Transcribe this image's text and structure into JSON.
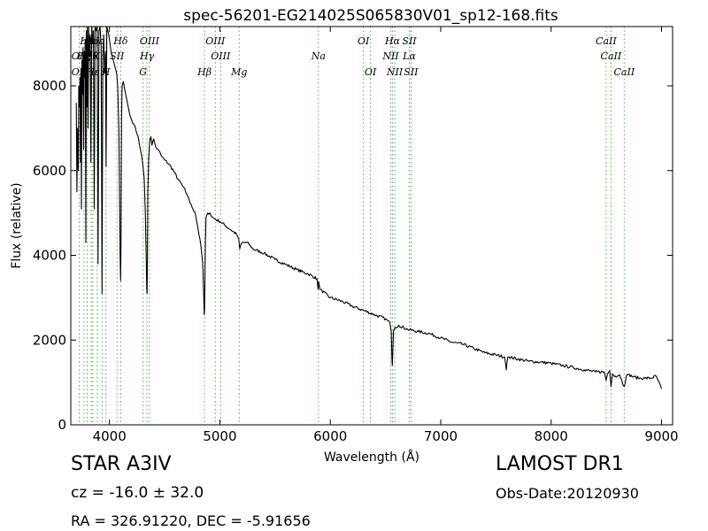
{
  "chart_data": {
    "type": "line",
    "title": "spec-56201-EG214025S065830V01_sp12-168.fits",
    "xlabel": "Wavelength (Å)",
    "ylabel": "Flux (relative)",
    "xlim": [
      3650,
      9100
    ],
    "ylim": [
      0,
      9400
    ],
    "xticks": [
      4000,
      5000,
      6000,
      7000,
      8000,
      9000
    ],
    "yticks": [
      0,
      2000,
      4000,
      6000,
      8000
    ],
    "grid": false,
    "series": [
      {
        "color": "#000000",
        "x": [
          3700,
          3705,
          3712,
          3718,
          3722,
          3728,
          3733,
          3737,
          3742,
          3746,
          3751,
          3756,
          3761,
          3766,
          3771,
          3775,
          3781,
          3786,
          3791,
          3796,
          3800,
          3806,
          3812,
          3818,
          3825,
          3832,
          3840,
          3848,
          3855,
          3862,
          3870,
          3880,
          3889,
          3897,
          3905,
          3915,
          3925,
          3933,
          3940,
          3948,
          3956,
          3964,
          3970,
          3976,
          3985,
          3995,
          4005,
          4015,
          4025,
          4035,
          4045,
          4055,
          4065,
          4075,
          4085,
          4093,
          4097,
          4101,
          4105,
          4109,
          4115,
          4125,
          4140,
          4155,
          4170,
          4185,
          4200,
          4220,
          4240,
          4260,
          4280,
          4300,
          4315,
          4325,
          4333,
          4338,
          4341,
          4344,
          4348,
          4355,
          4365,
          4375,
          4385,
          4400,
          4420,
          4440,
          4470,
          4500,
          4540,
          4580,
          4620,
          4660,
          4700,
          4740,
          4780,
          4810,
          4830,
          4845,
          4855,
          4858,
          4861,
          4864,
          4868,
          4875,
          4890,
          4910,
          4930,
          4960,
          5000,
          5050,
          5100,
          5150,
          5170,
          5180,
          5200,
          5250,
          5300,
          5400,
          5500,
          5600,
          5700,
          5800,
          5880,
          5889,
          5895,
          5905,
          6000,
          6100,
          6200,
          6300,
          6400,
          6500,
          6540,
          6552,
          6558,
          6562,
          6566,
          6572,
          6585,
          6620,
          6700,
          6800,
          6900,
          7000,
          7100,
          7200,
          7300,
          7400,
          7500,
          7580,
          7594,
          7600,
          7608,
          7620,
          7700,
          7800,
          7900,
          8000,
          8100,
          8200,
          8300,
          8400,
          8480,
          8498,
          8510,
          8530,
          8542,
          8555,
          8580,
          8620,
          8662,
          8680,
          8700,
          8750,
          8800,
          8850,
          8900,
          8950,
          9000
        ],
        "y": [
          7600,
          5500,
          7000,
          6000,
          8000,
          7500,
          8200,
          6200,
          8400,
          5100,
          8600,
          7800,
          8900,
          6500,
          8800,
          8200,
          9100,
          4300,
          9300,
          7500,
          9400,
          7000,
          9400,
          8700,
          9200,
          6200,
          9400,
          9000,
          9300,
          5100,
          9400,
          9300,
          9400,
          3800,
          9300,
          9400,
          8900,
          3100,
          8700,
          9200,
          8300,
          8800,
          6100,
          9400,
          9300,
          9200,
          9000,
          8800,
          8700,
          8600,
          8500,
          8400,
          8300,
          8000,
          7000,
          5000,
          3900,
          3400,
          4500,
          7200,
          8000,
          8100,
          7900,
          7700,
          7500,
          7300,
          7200,
          7100,
          6950,
          6800,
          6500,
          6200,
          5800,
          5000,
          4000,
          3200,
          3100,
          3900,
          5500,
          6300,
          6700,
          6800,
          6600,
          6750,
          6550,
          6500,
          6350,
          6250,
          6150,
          6000,
          5800,
          5650,
          5450,
          5200,
          4950,
          4500,
          4200,
          3800,
          3000,
          2600,
          2700,
          3300,
          4200,
          4900,
          5000,
          5000,
          4900,
          4850,
          4800,
          4700,
          4600,
          4500,
          4400,
          4150,
          4300,
          4300,
          4150,
          4050,
          3900,
          3780,
          3660,
          3560,
          3450,
          3200,
          3380,
          3200,
          3000,
          2920,
          2800,
          2700,
          2600,
          2500,
          2400,
          2200,
          1600,
          1400,
          1700,
          2200,
          2300,
          2350,
          2250,
          2200,
          2150,
          2050,
          1950,
          1900,
          1800,
          1700,
          1650,
          1600,
          1300,
          1450,
          1600,
          1600,
          1550,
          1500,
          1480,
          1450,
          1400,
          1350,
          1300,
          1250,
          1250,
          1050,
          1200,
          1280,
          900,
          1200,
          1150,
          1180,
          900,
          1150,
          1180,
          1130,
          1100,
          1100,
          1100,
          1150,
          850
        ]
      }
    ],
    "line_labels": [
      {
        "text": "Hθ",
        "wavelength": 3798,
        "row": 0,
        "lines": [
          3798
        ]
      },
      {
        "text": "Hη",
        "wavelength": 3836,
        "row": 0,
        "lines": [
          3836
        ]
      },
      {
        "text": "Hε",
        "wavelength": 3889,
        "row": 0,
        "lines": [
          3889
        ]
      },
      {
        "text": "Hδ",
        "wavelength": 4102,
        "row": 0,
        "lines": [
          4102
        ]
      },
      {
        "text": "OIII",
        "wavelength": 4363,
        "row": 0,
        "lines": [
          4363
        ]
      },
      {
        "text": "OIII",
        "wavelength": 4959,
        "row": 0,
        "lines": [
          4959
        ]
      },
      {
        "text": "OI",
        "wavelength": 6300,
        "row": 0,
        "lines": [
          6300
        ]
      },
      {
        "text": "Hα",
        "wavelength": 6563,
        "row": 0,
        "lines": [
          6563
        ]
      },
      {
        "text": "SII",
        "wavelength": 6716,
        "row": 0,
        "lines": [
          6716
        ]
      },
      {
        "text": "CaII",
        "wavelength": 8498,
        "row": 0,
        "lines": [
          8498
        ]
      },
      {
        "text": "OII",
        "wavelength": 3727,
        "row": 1,
        "lines": [
          3727
        ]
      },
      {
        "text": "Hζ",
        "wavelength": 3770,
        "row": 1,
        "lines": [
          3770
        ]
      },
      {
        "text": "Hθ",
        "wavelength": 3835,
        "row": 1,
        "lines": [
          3835
        ]
      },
      {
        "text": "K",
        "wavelength": 3880,
        "row": 1,
        "lines": [
          3934
        ]
      },
      {
        "text": "SII",
        "wavelength": 4069,
        "row": 1,
        "lines": [
          4069
        ]
      },
      {
        "text": "Hγ",
        "wavelength": 4340,
        "row": 1,
        "lines": [
          4340
        ]
      },
      {
        "text": "OIII",
        "wavelength": 5007,
        "row": 1,
        "lines": [
          5007
        ]
      },
      {
        "text": "Na",
        "wavelength": 5893,
        "row": 1,
        "lines": [
          5893
        ]
      },
      {
        "text": "NII",
        "wavelength": 6548,
        "row": 1,
        "lines": [
          6548
        ]
      },
      {
        "text": "Lα",
        "wavelength": 6716,
        "row": 1,
        "lines": [
          6716
        ]
      },
      {
        "text": "CaII",
        "wavelength": 8542,
        "row": 1,
        "lines": [
          8542
        ]
      },
      {
        "text": "OII",
        "wavelength": 3727,
        "row": 2,
        "lines": [
          3727
        ]
      },
      {
        "text": "Hε",
        "wavelength": 3850,
        "row": 2,
        "lines": [
          3850
        ]
      },
      {
        "text": "H",
        "wavelength": 3968,
        "row": 2,
        "lines": [
          3968
        ]
      },
      {
        "text": "G",
        "wavelength": 4304,
        "row": 2,
        "lines": [
          4304
        ]
      },
      {
        "text": "Hβ",
        "wavelength": 4861,
        "row": 2,
        "lines": [
          4861
        ]
      },
      {
        "text": "Mg",
        "wavelength": 5175,
        "row": 2,
        "lines": [
          5175
        ]
      },
      {
        "text": "OI",
        "wavelength": 6364,
        "row": 2,
        "lines": [
          6364
        ]
      },
      {
        "text": "NII",
        "wavelength": 6584,
        "row": 2,
        "lines": [
          6584
        ]
      },
      {
        "text": "SII",
        "wavelength": 6731,
        "row": 2,
        "lines": [
          6731
        ]
      },
      {
        "text": "CaII",
        "wavelength": 8662,
        "row": 2,
        "lines": [
          8662
        ]
      }
    ],
    "line_color": "#4daf4a"
  },
  "info": {
    "object_class": "STAR   A3IV",
    "redshift": "cz = -16.0 ± 32.0",
    "coords": "RA = 326.91220, DEC = -5.91656",
    "survey": "LAMOST DR1",
    "obs_date": "Obs-Date:20120930"
  }
}
